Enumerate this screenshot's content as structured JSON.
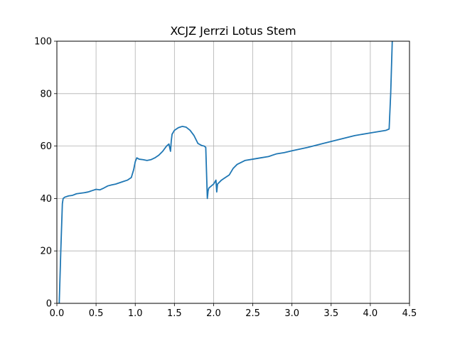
{
  "chart_data": {
    "type": "line",
    "title": "XCJZ Jerrzi Lotus Stem",
    "xlabel": "",
    "ylabel": "",
    "xlim": [
      0,
      4.5
    ],
    "ylim": [
      0,
      100
    ],
    "xticks": [
      "0.0",
      "0.5",
      "1.0",
      "1.5",
      "2.0",
      "2.5",
      "3.0",
      "3.5",
      "4.0",
      "4.5"
    ],
    "yticks": [
      "0",
      "20",
      "40",
      "60",
      "80",
      "100"
    ],
    "grid": true,
    "line_color": "#1f77b4",
    "series": [
      {
        "x": [
          0.02,
          0.03,
          0.05,
          0.07,
          0.08,
          0.1,
          0.15,
          0.2,
          0.25,
          0.3,
          0.35,
          0.4,
          0.45,
          0.5,
          0.55,
          0.6,
          0.65,
          0.7,
          0.75,
          0.8,
          0.85,
          0.9,
          0.95,
          0.98,
          1.0,
          1.02,
          1.05,
          1.1,
          1.15,
          1.2,
          1.25,
          1.3,
          1.35,
          1.4,
          1.43,
          1.45,
          1.46,
          1.47,
          1.5,
          1.55,
          1.6,
          1.65,
          1.7,
          1.75,
          1.8,
          1.85,
          1.88,
          1.9,
          1.92,
          1.93,
          1.94,
          1.96,
          2.0,
          2.03,
          2.04,
          2.05,
          2.1,
          2.15,
          2.2,
          2.25,
          2.3,
          2.4,
          2.5,
          2.6,
          2.7,
          2.8,
          2.9,
          3.0,
          3.2,
          3.4,
          3.6,
          3.8,
          4.0,
          4.2,
          4.24,
          4.26,
          4.28
        ],
        "y": [
          0,
          0,
          20,
          38,
          40,
          40.5,
          41,
          41.2,
          41.8,
          42,
          42.2,
          42.5,
          43,
          43.5,
          43.3,
          44,
          44.8,
          45.2,
          45.5,
          46,
          46.5,
          47,
          48,
          51,
          54,
          55.5,
          55,
          54.8,
          54.5,
          54.8,
          55.5,
          56.5,
          58,
          60,
          60.8,
          58,
          62,
          64.5,
          66,
          67,
          67.5,
          67.2,
          66,
          64,
          61,
          60.2,
          60,
          59.5,
          40,
          43,
          44,
          44.5,
          45.5,
          47,
          42.5,
          45.5,
          47,
          48,
          49,
          51.5,
          53,
          54.5,
          55,
          55.5,
          56,
          57,
          57.5,
          58.2,
          59.5,
          61,
          62.5,
          64,
          65,
          66,
          66.5,
          80,
          100
        ]
      }
    ]
  }
}
